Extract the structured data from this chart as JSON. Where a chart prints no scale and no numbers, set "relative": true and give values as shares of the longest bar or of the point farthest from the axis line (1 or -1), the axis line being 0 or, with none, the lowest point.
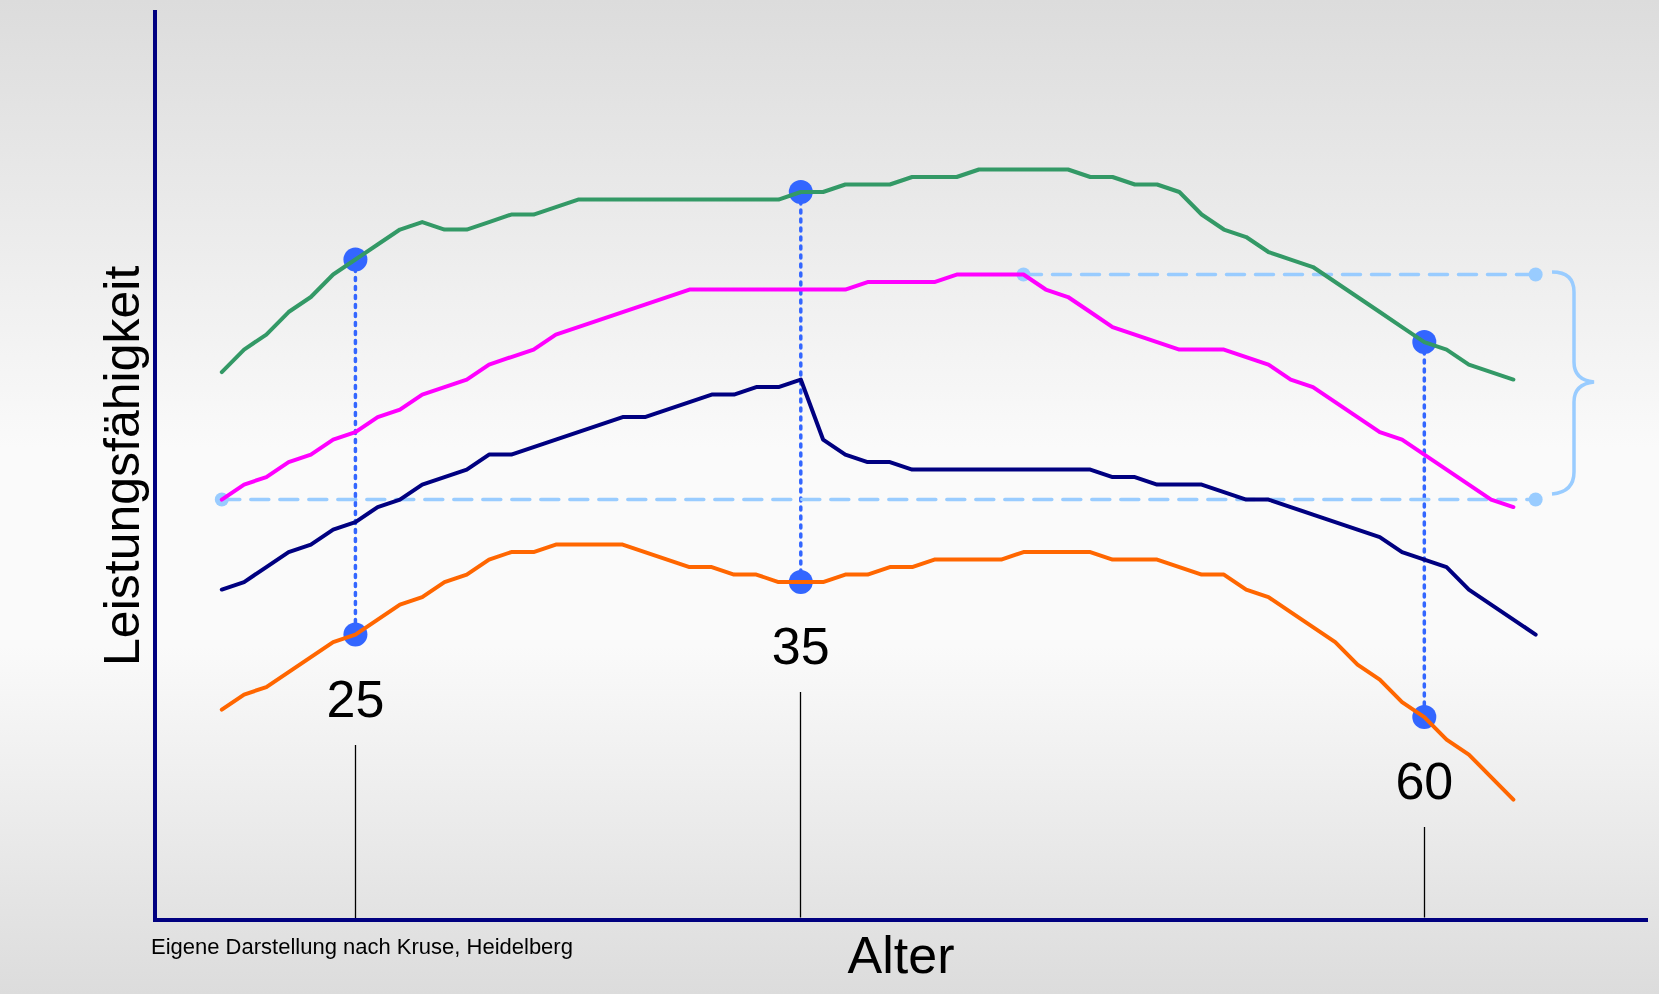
{
  "chart_data": {
    "type": "line",
    "relative": true,
    "xlabel": "Alter",
    "ylabel": "Leistungsfähigkeit",
    "categories": [
      null,
      null,
      null,
      null,
      null,
      null,
      null,
      null,
      null,
      "25",
      null,
      null,
      null,
      null,
      null,
      null,
      null,
      null,
      null,
      null,
      null,
      null,
      null,
      null,
      null,
      null,
      null,
      null,
      null,
      "35",
      null,
      null,
      null,
      null,
      null,
      null,
      null,
      null,
      null,
      null,
      null,
      null,
      null,
      null,
      null,
      null,
      null,
      null,
      null,
      null,
      null,
      null,
      null,
      null,
      null,
      null,
      null,
      "60",
      null,
      null,
      null,
      null,
      null,
      null,
      null,
      null,
      null,
      null
    ],
    "series": [
      {
        "color": "#339966",
        "line_style": "solid",
        "values": [
          null,
          null,
          null,
          0.73,
          0.76,
          0.78,
          0.81,
          0.83,
          0.86,
          0.88,
          0.9,
          0.92,
          0.93,
          0.92,
          0.92,
          0.93,
          0.94,
          0.94,
          0.95,
          0.96,
          0.96,
          0.96,
          0.96,
          0.96,
          0.96,
          0.96,
          0.96,
          0.96,
          0.96,
          0.97,
          0.97,
          0.98,
          0.98,
          0.98,
          0.99,
          0.99,
          0.99,
          1.0,
          1.0,
          1.0,
          1.0,
          1.0,
          0.99,
          0.99,
          0.98,
          0.98,
          0.97,
          0.94,
          0.92,
          0.91,
          0.89,
          0.88,
          0.87,
          0.85,
          0.83,
          0.81,
          0.79,
          0.77,
          0.76,
          0.74,
          0.73,
          0.72,
          null,
          null,
          null,
          null,
          null,
          null
        ]
      },
      {
        "color": "#ff00ff",
        "line_style": "solid",
        "values": [
          null,
          null,
          null,
          0.56,
          0.58,
          0.59,
          0.61,
          0.62,
          0.64,
          0.65,
          0.67,
          0.68,
          0.7,
          0.71,
          0.72,
          0.74,
          0.75,
          0.76,
          0.78,
          0.79,
          0.8,
          0.81,
          0.82,
          0.83,
          0.84,
          0.84,
          0.84,
          0.84,
          0.84,
          0.84,
          0.84,
          0.84,
          0.85,
          0.85,
          0.85,
          0.85,
          0.86,
          0.86,
          0.86,
          0.86,
          0.84,
          0.83,
          0.81,
          0.79,
          0.78,
          0.77,
          0.76,
          0.76,
          0.76,
          0.75,
          0.74,
          0.72,
          0.71,
          0.69,
          0.67,
          0.65,
          0.64,
          0.62,
          0.6,
          0.58,
          0.56,
          0.55,
          null,
          null,
          null,
          null,
          null,
          null
        ]
      },
      {
        "color": "#000080",
        "line_style": "solid",
        "values": [
          null,
          null,
          null,
          0.44,
          0.45,
          0.47,
          0.49,
          0.5,
          0.52,
          0.53,
          0.55,
          0.56,
          0.58,
          0.59,
          0.6,
          0.62,
          0.62,
          0.63,
          0.64,
          0.65,
          0.66,
          0.67,
          0.67,
          0.68,
          0.69,
          0.7,
          0.7,
          0.71,
          0.71,
          0.72,
          0.64,
          0.62,
          0.61,
          0.61,
          0.6,
          0.6,
          0.6,
          0.6,
          0.6,
          0.6,
          0.6,
          0.6,
          0.6,
          0.59,
          0.59,
          0.58,
          0.58,
          0.58,
          0.57,
          0.56,
          0.56,
          0.55,
          0.54,
          0.53,
          0.52,
          0.51,
          0.49,
          0.48,
          0.47,
          0.44,
          0.42,
          0.4,
          0.38,
          null,
          null,
          null,
          null,
          null
        ]
      },
      {
        "color": "#ff6600",
        "line_style": "solid",
        "values": [
          null,
          null,
          null,
          0.28,
          0.3,
          0.31,
          0.33,
          0.35,
          0.37,
          0.38,
          0.4,
          0.42,
          0.43,
          0.45,
          0.46,
          0.48,
          0.49,
          0.49,
          0.5,
          0.5,
          0.5,
          0.5,
          0.49,
          0.48,
          0.47,
          0.47,
          0.46,
          0.46,
          0.45,
          0.45,
          0.45,
          0.46,
          0.46,
          0.47,
          0.47,
          0.48,
          0.48,
          0.48,
          0.48,
          0.49,
          0.49,
          0.49,
          0.49,
          0.48,
          0.48,
          0.48,
          0.47,
          0.46,
          0.46,
          0.44,
          0.43,
          0.41,
          0.39,
          0.37,
          0.34,
          0.32,
          0.29,
          0.27,
          0.24,
          0.22,
          0.19,
          0.16,
          null,
          null,
          null,
          null,
          null,
          null
        ]
      },
      {
        "color": "#99ccff",
        "line_style": "dashed",
        "marker": "circle",
        "values": [
          null,
          null,
          null,
          null,
          null,
          null,
          null,
          null,
          null,
          null,
          null,
          null,
          null,
          null,
          null,
          null,
          null,
          null,
          null,
          null,
          null,
          null,
          null,
          null,
          null,
          null,
          null,
          null,
          null,
          null,
          null,
          null,
          null,
          null,
          null,
          null,
          null,
          null,
          null,
          0.86,
          null,
          null,
          null,
          null,
          null,
          null,
          null,
          null,
          null,
          null,
          null,
          null,
          null,
          null,
          null,
          null,
          null,
          null,
          null,
          null,
          null,
          null,
          0.86,
          null,
          null,
          null,
          null,
          null
        ]
      },
      {
        "color": "#99ccff",
        "line_style": "dashed",
        "marker": "circle",
        "values": [
          null,
          null,
          null,
          0.56,
          null,
          null,
          null,
          null,
          null,
          null,
          null,
          null,
          null,
          null,
          null,
          null,
          null,
          null,
          null,
          null,
          null,
          null,
          null,
          null,
          null,
          null,
          null,
          null,
          null,
          null,
          null,
          null,
          null,
          null,
          null,
          null,
          null,
          null,
          null,
          null,
          null,
          null,
          null,
          null,
          null,
          null,
          null,
          null,
          null,
          null,
          null,
          null,
          null,
          null,
          null,
          null,
          null,
          null,
          null,
          null,
          null,
          null,
          0.56,
          null,
          null,
          null,
          null,
          null
        ]
      },
      {
        "color": "#3366ff",
        "line_style": "dotted",
        "marker": "circle",
        "x": [
          "25",
          "25"
        ],
        "values": [
          0.88,
          0.38
        ]
      },
      {
        "color": "#3366ff",
        "line_style": "dotted",
        "marker": "circle",
        "x": [
          "35",
          "35"
        ],
        "values": [
          0.97,
          0.45
        ]
      },
      {
        "color": "#3366ff",
        "line_style": "dotted",
        "marker": "circle",
        "x": [
          "60",
          "60"
        ],
        "values": [
          0.77,
          0.27
        ]
      }
    ],
    "annotations": [
      "Eigene Darstellung nach Kruse, Heidelberg"
    ]
  }
}
